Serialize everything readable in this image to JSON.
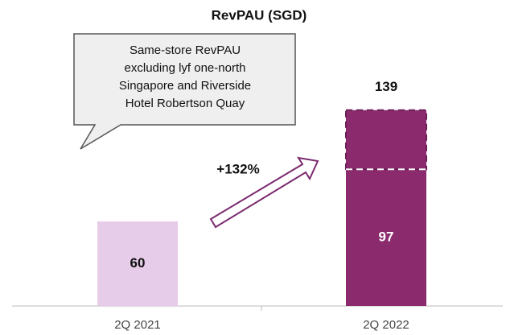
{
  "chart_data": {
    "type": "bar",
    "title": "RevPAU (SGD)",
    "categories": [
      "2Q 2021",
      "2Q 2022"
    ],
    "series": [
      {
        "colors": [
          "#e6cce8",
          "#8c2a6e"
        ],
        "values": [
          60,
          97
        ]
      },
      {
        "color": "#8c2a6e",
        "dashed": true,
        "values": [
          null,
          42
        ]
      }
    ],
    "totals": [
      null,
      139
    ],
    "ylim": [
      0,
      200
    ],
    "callout": [
      "Same-store RevPAU",
      "excluding lyf one-north",
      "Singapore and Riverside",
      "Hotel Robertson Quay"
    ],
    "change_label": "+132%"
  }
}
